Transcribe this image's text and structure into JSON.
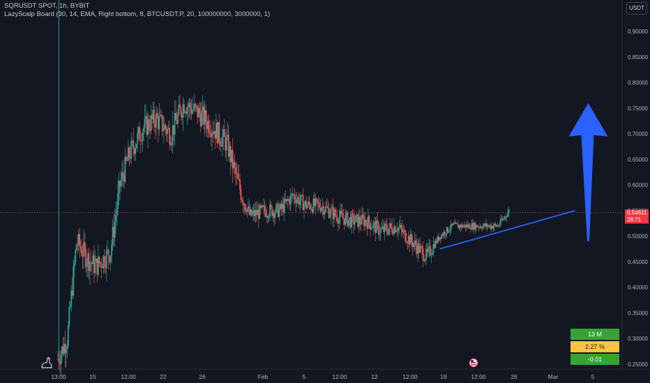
{
  "header": {
    "symbol_line": "SQRUSDT SPOT, 1h, BYBIT",
    "indicator_line": "LazyScalp Board (30, 14, EMA, Right bottom, 8, BTCUSDT.P, 20, 100000000, 3000000, 1)"
  },
  "currency_button": "USDT",
  "price_tag": {
    "price": "0.54611",
    "countdown": "28:71"
  },
  "board": {
    "volume": "13 M",
    "percent": "2.27 %",
    "correlation": "-0.01"
  },
  "colors": {
    "background": "#131722",
    "up": "#26a69a",
    "down": "#ef5350",
    "trendline": "#2962ff",
    "arrow": "#2962ff",
    "price_line": "#f23645",
    "board_green": "#37a335",
    "board_yellow": "#f5c440"
  },
  "icons": [
    "tradingview-dino-icon",
    "us-flag-event-icon"
  ],
  "chart_data": {
    "type": "candlestick",
    "y_axis": {
      "min": 0.25,
      "max": 0.9,
      "ticks": [
        "0.90000",
        "0.85000",
        "0.80000",
        "0.75000",
        "0.70000",
        "0.65000",
        "0.60000",
        "0.55000",
        "0.50000",
        "0.45000",
        "0.40000",
        "0.35000",
        "0.30000",
        "0.25000"
      ]
    },
    "x_ticks": [
      "13:00",
      "15",
      "12:00",
      "22",
      "26",
      "Feb",
      "5",
      "12:00",
      "12",
      "12:00",
      "19",
      "12:00",
      "26",
      "Mar",
      "5"
    ],
    "last_price": 0.54611,
    "price_path": [
      [
        0,
        0.26
      ],
      [
        0.5,
        0.3
      ],
      [
        1.0,
        0.49
      ],
      [
        1.5,
        0.46
      ],
      [
        2.0,
        0.44
      ],
      [
        2.8,
        0.47
      ],
      [
        3.3,
        0.6
      ],
      [
        3.8,
        0.66
      ],
      [
        4.5,
        0.71
      ],
      [
        5.2,
        0.73
      ],
      [
        6.0,
        0.7
      ],
      [
        6.7,
        0.76
      ],
      [
        7.5,
        0.74
      ],
      [
        8.3,
        0.71
      ],
      [
        9.0,
        0.68
      ],
      [
        9.6,
        0.6
      ],
      [
        10.2,
        0.54
      ],
      [
        11.0,
        0.55
      ],
      [
        11.8,
        0.55
      ],
      [
        12.5,
        0.58
      ],
      [
        13.2,
        0.56
      ],
      [
        14.0,
        0.56
      ],
      [
        14.8,
        0.54
      ],
      [
        15.6,
        0.53
      ],
      [
        16.4,
        0.53
      ],
      [
        17.2,
        0.51
      ],
      [
        18.0,
        0.52
      ],
      [
        18.8,
        0.49
      ],
      [
        19.6,
        0.46
      ],
      [
        20.3,
        0.5
      ],
      [
        21.0,
        0.52
      ],
      [
        21.8,
        0.52
      ],
      [
        22.6,
        0.52
      ],
      [
        23.4,
        0.52
      ],
      [
        24.0,
        0.55
      ]
    ],
    "trendline": [
      [
        20.3,
        0.475
      ],
      [
        27.5,
        0.55
      ]
    ],
    "arrow": {
      "x": 28.2,
      "from": 0.49,
      "to": 0.76
    },
    "grid": false,
    "legend": "none"
  }
}
